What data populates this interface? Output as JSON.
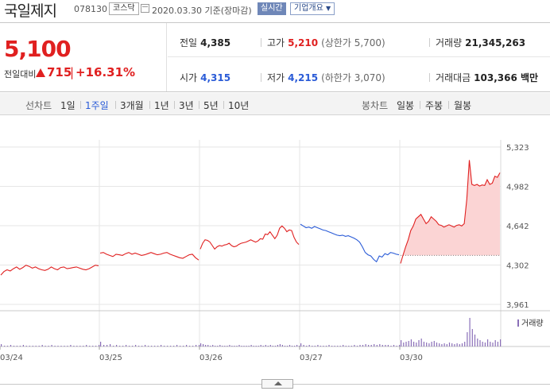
{
  "header": {
    "stock_name": "국일제지",
    "stock_code": "078130",
    "market_badge": "코스닥",
    "date": "2020.03.30",
    "date_suffix": "기준(장마감)",
    "realtime_button": "실시간",
    "company_info_button": "기업개요",
    "company_info_icon": "chevron-down-icon"
  },
  "summary": {
    "price": "5,100",
    "change_label": "전일대비",
    "change_value": "715",
    "change_pct": "+16.31%",
    "prev_close_label": "전일",
    "prev_close": "4,385",
    "high_label": "고가",
    "high": "5,210",
    "upper_limit_label": "(상한가",
    "upper_limit": "5,700)",
    "volume_label": "거래량",
    "volume": "21,345,263",
    "open_label": "시가",
    "open": "4,315",
    "low_label": "저가",
    "low": "4,215",
    "lower_limit_label": "(하한가",
    "lower_limit": "3,070)",
    "amount_label": "거래대금",
    "amount": "103,366 백만",
    "up_color": "#e02020",
    "down_color": "#2a5bd7"
  },
  "toolbar": {
    "line_chart_label": "선차트",
    "periods": [
      {
        "label": "1일"
      },
      {
        "label": "1주일",
        "selected": true
      },
      {
        "label": "3개월"
      },
      {
        "label": "1년"
      },
      {
        "label": "3년"
      },
      {
        "label": "5년"
      },
      {
        "label": "10년"
      }
    ],
    "candle_chart_label": "봉차트",
    "candle_periods": [
      {
        "label": "일봉"
      },
      {
        "label": "주봉"
      },
      {
        "label": "월봉"
      }
    ]
  },
  "chart_data": {
    "type": "line",
    "y_ticks": [
      "5,323",
      "4,982",
      "4,642",
      "4,302",
      "3,961"
    ],
    "ylim": [
      3961,
      5323
    ],
    "x_ticks": [
      "03/24",
      "03/25",
      "03/26",
      "03/27",
      "03/30"
    ],
    "prev_close": 4385,
    "volume_legend": "거래량",
    "grid": true,
    "series": [
      {
        "day": "03/24",
        "color": "#e02020",
        "values": [
          4215,
          4245,
          4260,
          4250,
          4270,
          4285,
          4265,
          4280,
          4300,
          4290,
          4275,
          4285,
          4270,
          4260,
          4255,
          4265,
          4285,
          4270,
          4260,
          4280,
          4285,
          4270,
          4275,
          4280,
          4285,
          4275,
          4265,
          4260,
          4270,
          4285,
          4300,
          4295
        ]
      },
      {
        "day": "03/25",
        "color": "#e02020",
        "values": [
          4405,
          4410,
          4395,
          4385,
          4375,
          4395,
          4390,
          4385,
          4400,
          4410,
          4395,
          4405,
          4395,
          4385,
          4390,
          4400,
          4410,
          4400,
          4390,
          4395,
          4405,
          4410,
          4395,
          4385,
          4375,
          4365,
          4360,
          4375,
          4390,
          4395,
          4365,
          4345
        ]
      },
      {
        "day": "03/26",
        "color": "#e02020",
        "values": [
          4440,
          4490,
          4520,
          4515,
          4500,
          4470,
          4440,
          4460,
          4470,
          4465,
          4475,
          4480,
          4490,
          4470,
          4460,
          4465,
          4480,
          4490,
          4495,
          4500,
          4510,
          4520,
          4510,
          4500,
          4510,
          4530,
          4525,
          4570,
          4565,
          4590,
          4560,
          4530,
          4560,
          4620,
          4640,
          4620,
          4590,
          4605,
          4600,
          4540,
          4500,
          4480
        ]
      },
      {
        "day": "03/27",
        "color": "#2a5bd7",
        "values": [
          4655,
          4640,
          4625,
          4630,
          4620,
          4635,
          4625,
          4615,
          4605,
          4600,
          4590,
          4580,
          4570,
          4560,
          4555,
          4560,
          4550,
          4555,
          4545,
          4535,
          4520,
          4500,
          4460,
          4410,
          4390,
          4380,
          4350,
          4330,
          4380,
          4370,
          4400,
          4390,
          4410,
          4405,
          4395,
          4390
        ]
      },
      {
        "day": "03/30",
        "color": "#e02020",
        "fill": "#fbd4d4",
        "values": [
          4315,
          4390,
          4460,
          4520,
          4600,
          4640,
          4700,
          4720,
          4740,
          4700,
          4660,
          4680,
          4720,
          4700,
          4680,
          4650,
          4645,
          4630,
          4640,
          4650,
          4640,
          4630,
          4645,
          4650,
          4640,
          4660,
          4870,
          5210,
          5000,
          4990,
          5000,
          4985,
          4995,
          4990,
          5040,
          5000,
          5010,
          5070,
          5060,
          5100
        ]
      }
    ],
    "volume": [
      {
        "day": "03/24",
        "values": [
          3,
          1,
          1,
          2,
          1,
          1,
          1,
          2,
          1,
          1,
          1,
          1,
          1,
          2,
          1,
          1,
          2,
          1,
          1,
          1,
          1,
          1,
          2,
          1,
          1,
          1,
          1,
          2,
          1,
          1,
          1,
          2
        ]
      },
      {
        "day": "03/25",
        "values": [
          6,
          2,
          2,
          3,
          1,
          2,
          1,
          1,
          2,
          1,
          1,
          2,
          1,
          1,
          2,
          1,
          1,
          1,
          1,
          2,
          1,
          1,
          1,
          1,
          2,
          1,
          1,
          2,
          1,
          1,
          2,
          2
        ]
      },
      {
        "day": "03/26",
        "values": [
          4,
          3,
          2,
          2,
          1,
          2,
          1,
          1,
          2,
          1,
          1,
          1,
          2,
          1,
          1,
          1,
          2,
          1,
          1,
          1,
          1,
          2,
          1,
          1,
          1,
          2,
          1,
          2,
          1,
          2,
          1,
          1,
          2,
          3,
          2,
          1,
          1,
          2,
          1,
          1,
          2,
          1
        ]
      },
      {
        "day": "03/27",
        "values": [
          4,
          2,
          1,
          2,
          1,
          1,
          2,
          1,
          1,
          1,
          2,
          1,
          1,
          1,
          1,
          2,
          1,
          1,
          1,
          2,
          1,
          2,
          2,
          3,
          2,
          2,
          3,
          2,
          3,
          2,
          2,
          2,
          1,
          2,
          1,
          2
        ]
      },
      {
        "day": "03/30",
        "values": [
          8,
          5,
          6,
          7,
          9,
          6,
          5,
          8,
          10,
          6,
          5,
          4,
          6,
          7,
          5,
          4,
          3,
          4,
          3,
          5,
          4,
          3,
          4,
          3,
          4,
          6,
          18,
          36,
          22,
          15,
          10,
          8,
          6,
          5,
          9,
          6,
          5,
          8,
          6,
          9
        ]
      }
    ]
  }
}
